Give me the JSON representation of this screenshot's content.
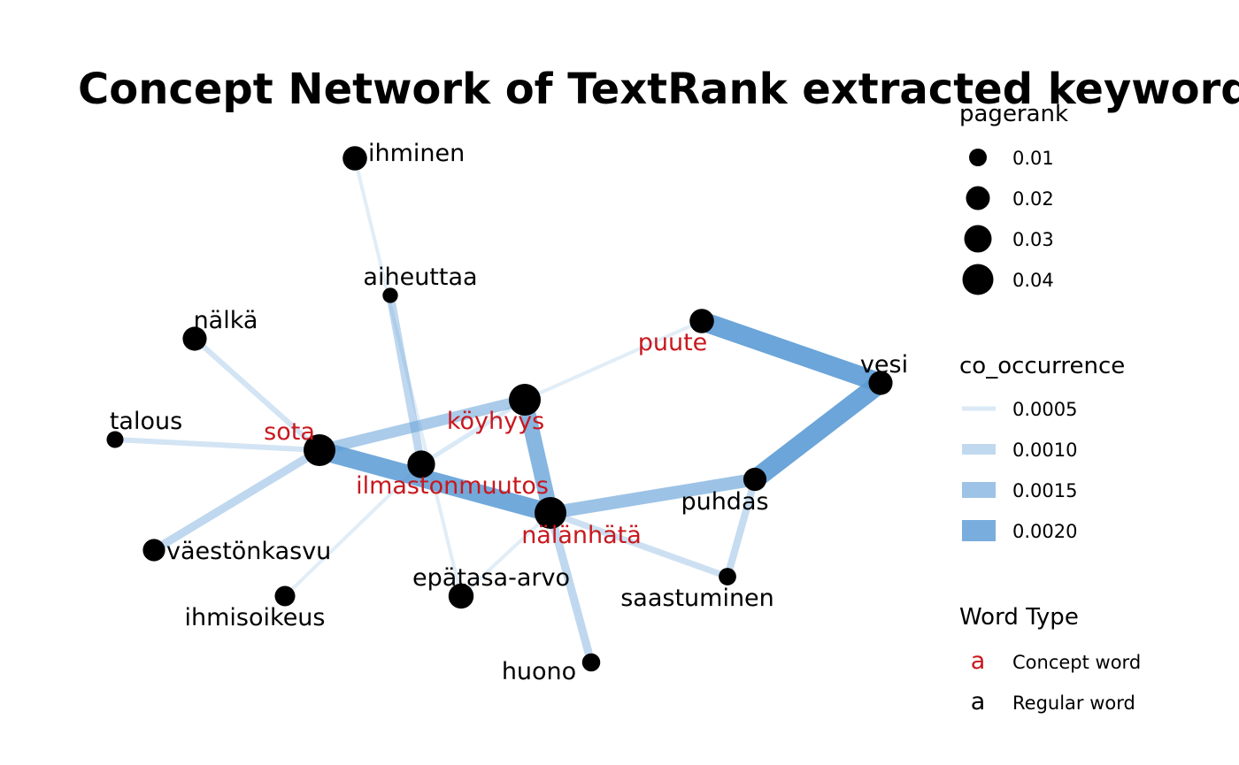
{
  "title": "Concept Network of TextRank extracted keywords",
  "colors": {
    "concept": "#c8181e",
    "regular": "#000000",
    "edge_base": "#5b9bd5",
    "node": "#000000"
  },
  "nodes": [
    {
      "id": "ihminen",
      "type": "regular",
      "pagerank": 0.022
    },
    {
      "id": "aiheuttaa",
      "type": "regular",
      "pagerank": 0.005
    },
    {
      "id": "nälkä",
      "type": "regular",
      "pagerank": 0.021
    },
    {
      "id": "talous",
      "type": "regular",
      "pagerank": 0.007
    },
    {
      "id": "sota",
      "type": "concept",
      "pagerank": 0.045
    },
    {
      "id": "köyhyys",
      "type": "concept",
      "pagerank": 0.045
    },
    {
      "id": "ilmastonmuutos",
      "type": "concept",
      "pagerank": 0.031
    },
    {
      "id": "nälänhätä",
      "type": "concept",
      "pagerank": 0.045
    },
    {
      "id": "puute",
      "type": "concept",
      "pagerank": 0.022
    },
    {
      "id": "vesi",
      "type": "regular",
      "pagerank": 0.021
    },
    {
      "id": "puhdas",
      "type": "regular",
      "pagerank": 0.019
    },
    {
      "id": "saastuminen",
      "type": "regular",
      "pagerank": 0.008
    },
    {
      "id": "väestönkasvu",
      "type": "regular",
      "pagerank": 0.017
    },
    {
      "id": "ihmisoikeus",
      "type": "regular",
      "pagerank": 0.013
    },
    {
      "id": "epätasa-arvo",
      "type": "regular",
      "pagerank": 0.024
    },
    {
      "id": "huono",
      "type": "regular",
      "pagerank": 0.009
    }
  ],
  "edges": [
    {
      "source": "ihminen",
      "target": "epätasa-arvo",
      "co_occurrence": 0.0005
    },
    {
      "source": "aiheuttaa",
      "target": "ilmastonmuutos",
      "co_occurrence": 0.001
    },
    {
      "source": "nälkä",
      "target": "sota",
      "co_occurrence": 0.0007
    },
    {
      "source": "talous",
      "target": "sota",
      "co_occurrence": 0.0007
    },
    {
      "source": "sota",
      "target": "väestönkasvu",
      "co_occurrence": 0.001
    },
    {
      "source": "sota",
      "target": "köyhyys",
      "co_occurrence": 0.0013
    },
    {
      "source": "sota",
      "target": "nälänhätä",
      "co_occurrence": 0.0021
    },
    {
      "source": "köyhyys",
      "target": "puute",
      "co_occurrence": 0.0005
    },
    {
      "source": "köyhyys",
      "target": "ilmastonmuutos",
      "co_occurrence": 0.0006
    },
    {
      "source": "köyhyys",
      "target": "nälänhätä",
      "co_occurrence": 0.0018
    },
    {
      "source": "ilmastonmuutos",
      "target": "ihmisoikeus",
      "co_occurrence": 0.0005
    },
    {
      "source": "nälänhätä",
      "target": "puhdas",
      "co_occurrence": 0.0015
    },
    {
      "source": "nälänhätä",
      "target": "saastuminen",
      "co_occurrence": 0.0008
    },
    {
      "source": "nälänhätä",
      "target": "huono",
      "co_occurrence": 0.001
    },
    {
      "source": "nälänhätä",
      "target": "epätasa-arvo",
      "co_occurrence": 0.0005
    },
    {
      "source": "puhdas",
      "target": "saastuminen",
      "co_occurrence": 0.0009
    },
    {
      "source": "puhdas",
      "target": "vesi",
      "co_occurrence": 0.0022
    },
    {
      "source": "puute",
      "target": "vesi",
      "co_occurrence": 0.0022
    }
  ],
  "legend": {
    "pagerank": {
      "title": "pagerank",
      "items": [
        {
          "label": "0.01",
          "value": 0.01
        },
        {
          "label": "0.02",
          "value": 0.02
        },
        {
          "label": "0.03",
          "value": 0.03
        },
        {
          "label": "0.04",
          "value": 0.04
        }
      ]
    },
    "co_occurrence": {
      "title": "co_occurrence",
      "items": [
        {
          "label": "0.0005",
          "value": 0.0005
        },
        {
          "label": "0.0010",
          "value": 0.001
        },
        {
          "label": "0.0015",
          "value": 0.0015
        },
        {
          "label": "0.0020",
          "value": 0.002
        }
      ]
    },
    "word_type": {
      "title": "Word Type",
      "items": [
        {
          "glyph": "a",
          "label": "Concept word",
          "type": "concept"
        },
        {
          "glyph": "a",
          "label": "Regular word",
          "type": "regular"
        }
      ]
    }
  }
}
